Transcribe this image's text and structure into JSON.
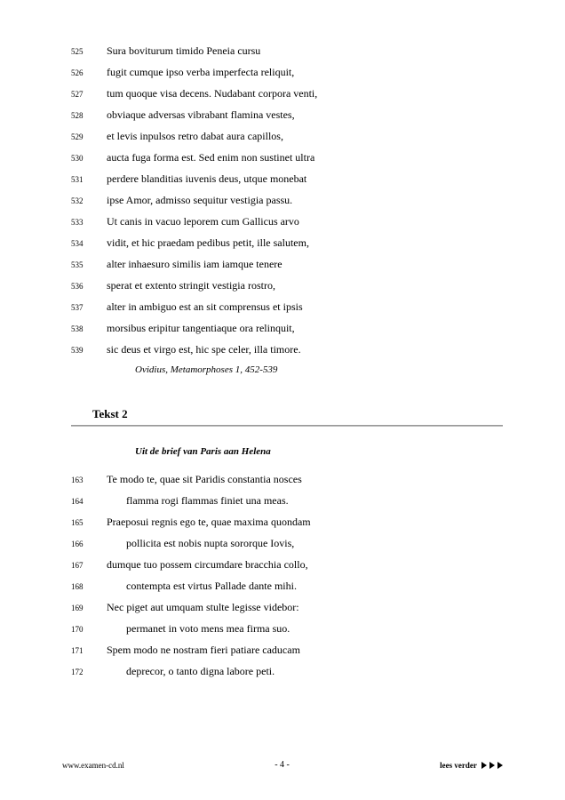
{
  "section1": {
    "lines": [
      {
        "num": "525",
        "text": "Sura boviturum timido Peneia cursu"
      },
      {
        "num": "526",
        "text": "fugit cumque ipso verba imperfecta reliquit,"
      },
      {
        "num": "527",
        "text": "tum quoque visa decens. Nudabant corpora venti,"
      },
      {
        "num": "528",
        "text": "obviaque adversas vibrabant flamina vestes,"
      },
      {
        "num": "529",
        "text": "et levis inpulsos retro dabat aura capillos,"
      },
      {
        "num": "530",
        "text": "aucta fuga forma est. Sed enim non sustinet ultra"
      },
      {
        "num": "531",
        "text": "perdere blanditias iuvenis deus, utque monebat"
      },
      {
        "num": "532",
        "text": "ipse Amor, admisso sequitur vestigia passu."
      },
      {
        "num": "533",
        "text": "Ut canis in vacuo leporem cum Gallicus arvo"
      },
      {
        "num": "534",
        "text": "vidit, et hic praedam pedibus petit, ille salutem,"
      },
      {
        "num": "535",
        "text": "alter inhaesuro similis iam iamque tenere"
      },
      {
        "num": "536",
        "text": "sperat et extento stringit vestigia rostro,"
      },
      {
        "num": "537",
        "text": "alter in ambiguo est an sit comprensus et ipsis"
      },
      {
        "num": "538",
        "text": "morsibus eripitur tangentiaque ora relinquit,"
      },
      {
        "num": "539",
        "text": "sic deus et virgo est, hic spe celer, illa timore."
      }
    ],
    "attribution": "Ovidius, Metamorphoses 1, 452-539"
  },
  "section2": {
    "header": "Tekst 2",
    "subtitle": "Uit de brief van Paris aan Helena",
    "lines": [
      {
        "num": "163",
        "text": "Te modo te, quae sit Paridis constantia nosces",
        "indent": false
      },
      {
        "num": "164",
        "text": "flamma rogi flammas finiet una meas.",
        "indent": true
      },
      {
        "num": "165",
        "text": "Praeposui regnis ego te, quae maxima quondam",
        "indent": false
      },
      {
        "num": "166",
        "text": "pollicita est nobis nupta sororque Iovis,",
        "indent": true
      },
      {
        "num": "167",
        "text": "dumque tuo possem circumdare bracchia collo,",
        "indent": false
      },
      {
        "num": "168",
        "text": "contempta est virtus Pallade dante mihi.",
        "indent": true
      },
      {
        "num": "169",
        "text": "Nec piget aut umquam stulte legisse videbor:",
        "indent": false
      },
      {
        "num": "170",
        "text": "permanet in voto mens mea firma suo.",
        "indent": true
      },
      {
        "num": "171",
        "text": "Spem modo ne nostram fieri patiare caducam",
        "indent": false
      },
      {
        "num": "172",
        "text": "deprecor, o tanto digna labore peti.",
        "indent": true
      }
    ]
  },
  "footer": {
    "left": "www.examen-cd.nl",
    "center": "- 4 -",
    "right": "lees verder"
  }
}
